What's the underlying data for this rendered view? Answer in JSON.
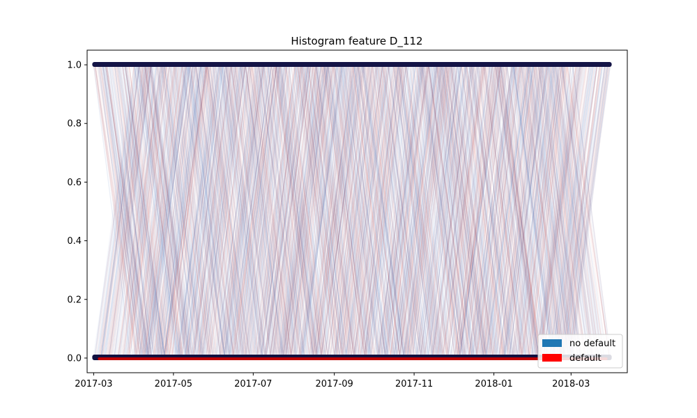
{
  "chart_data": {
    "type": "line",
    "title": "Histogram feature D_112",
    "xlabel": "",
    "ylabel": "",
    "x_ticks": [
      "2017-03",
      "2017-05",
      "2017-07",
      "2017-09",
      "2017-11",
      "2018-01",
      "2018-03"
    ],
    "y_ticks": [
      "0.0",
      "0.2",
      "0.4",
      "0.6",
      "0.8",
      "1.0"
    ],
    "xlim": [
      "2017-02-24",
      "2018-04-13"
    ],
    "ylim": [
      -0.05,
      1.05
    ],
    "series": [
      {
        "name": "no default",
        "color": "#1f77b4",
        "values_range": [
          0,
          1
        ]
      },
      {
        "name": "default",
        "color": "#ff0000",
        "values_range": [
          0,
          1
        ]
      }
    ],
    "points_y_values": [
      0.0,
      1.0
    ],
    "grid": false,
    "legend_position": "lower-right"
  }
}
